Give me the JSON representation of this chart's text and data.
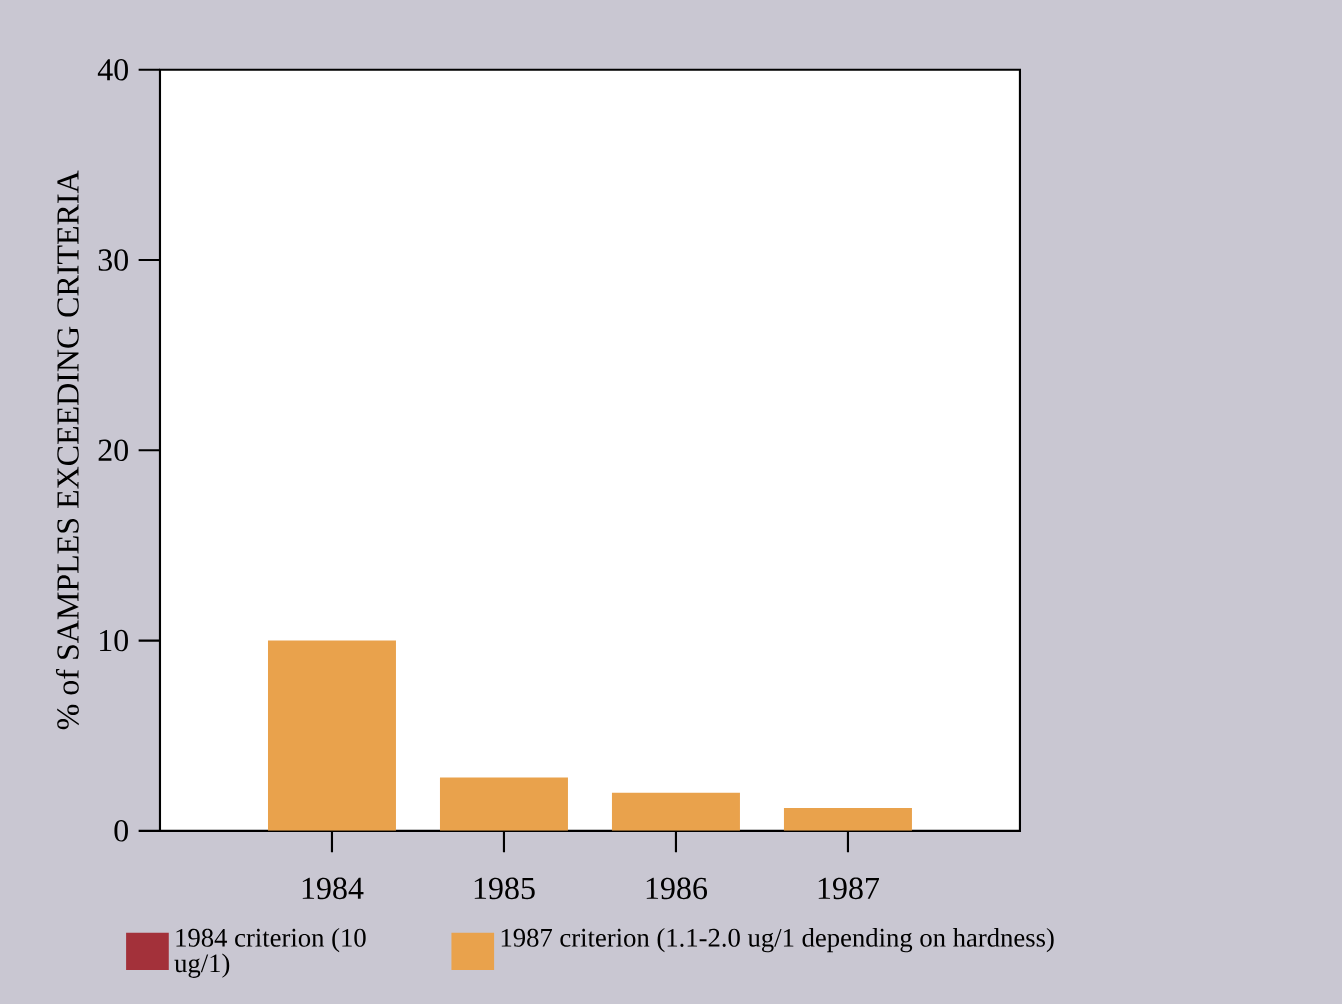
{
  "chart_data": {
    "type": "bar",
    "ylabel": "% of SAMPLES EXCEEDING CRITERIA",
    "categories": [
      "1984",
      "1985",
      "1986",
      "1987"
    ],
    "series": [
      {
        "name": "1984 criterion (10 ug/1)",
        "color": "#a3313a",
        "values": [
          0,
          0,
          0,
          0
        ]
      },
      {
        "name": "1987 criterion (1.1-2.0 ug/1 depending on hardness)",
        "color": "#e9a24c",
        "values": [
          10,
          2.8,
          2.0,
          1.2
        ]
      }
    ],
    "ylim": [
      0,
      40
    ],
    "yticks": [
      0,
      10,
      20,
      30,
      40
    ],
    "grid": false,
    "legend": "bottom"
  }
}
